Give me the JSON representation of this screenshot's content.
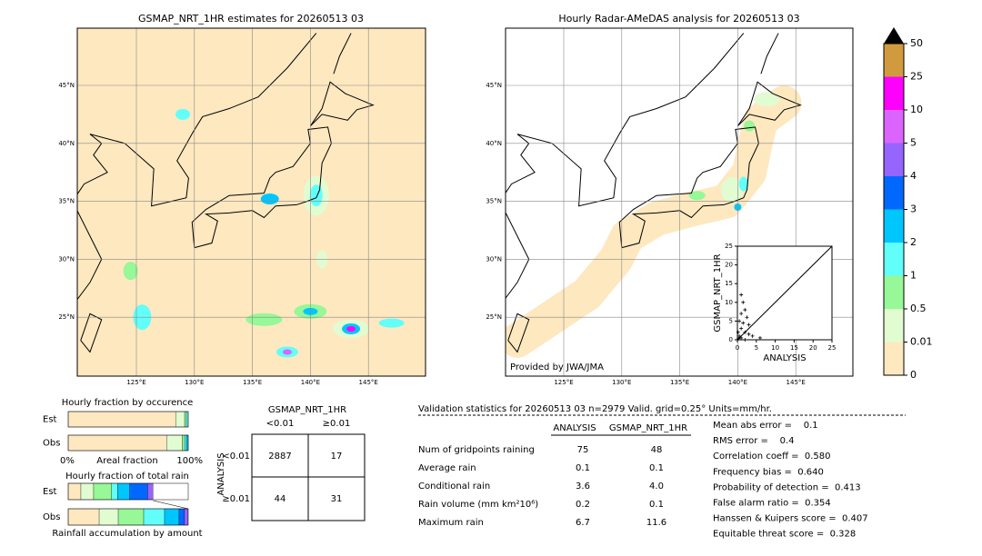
{
  "map_left": {
    "title": "GSMAP_NRT_1HR estimates for 20260513 03",
    "lon_labels": [
      "125°E",
      "130°E",
      "135°E",
      "140°E",
      "145°E"
    ],
    "lat_labels": [
      "45°N",
      "40°N",
      "35°N",
      "30°N",
      "25°N"
    ]
  },
  "map_right": {
    "title": "Hourly Radar-AMeDAS analysis for 20260513 03",
    "lon_labels": [
      "125°E",
      "130°E",
      "135°E",
      "140°E",
      "145°E"
    ],
    "lat_labels": [
      "45°N",
      "40°N",
      "35°N",
      "30°N",
      "25°N"
    ],
    "credit": "Provided by JWA/JMA"
  },
  "colorbar": {
    "ticks": [
      0,
      0.01,
      0.5,
      1,
      2,
      3,
      4,
      5,
      10,
      25,
      50
    ],
    "colors": [
      "#fee8c0",
      "#e2fcd2",
      "#96f896",
      "#62fefa",
      "#00c6fe",
      "#0068fe",
      "#9664fe",
      "#dc64fe",
      "#fe00fe",
      "#d29a3e"
    ],
    "over_color": "#000000"
  },
  "scatter": {
    "type": "scatter",
    "xlabel": "ANALYSIS",
    "ylabel": "GSMAP_NRT_1HR",
    "xlim": [
      0,
      25
    ],
    "ylim": [
      0,
      25
    ],
    "xticks": [
      0,
      5,
      10,
      15,
      20,
      25
    ],
    "yticks": [
      0,
      5,
      10,
      15,
      20,
      25
    ],
    "x": [
      1,
      1.5,
      2,
      1,
      2.5,
      0.5,
      3,
      1,
      2,
      0.5,
      1,
      4,
      6,
      2,
      0.3,
      3,
      1.5,
      0.2
    ],
    "y": [
      12,
      10,
      8,
      7,
      6,
      5,
      4,
      3,
      2,
      1,
      0.5,
      1,
      0.5,
      0,
      0.3,
      1.5,
      4.5,
      2
    ]
  },
  "fraction_occurrence": {
    "title": "Hourly fraction by occurence",
    "rows": [
      "Est",
      "Obs"
    ],
    "axis_labels": [
      "0%",
      "Areal fraction",
      "100%"
    ],
    "segments": [
      [
        89.5,
        7.5,
        1.5,
        1.5
      ],
      [
        82,
        13,
        2,
        1.5,
        1.5
      ]
    ]
  },
  "fraction_rain": {
    "title": "Hourly fraction of total rain",
    "rows": [
      "Est",
      "Obs"
    ],
    "footer": "Rainfall accumulation by amount",
    "segments": [
      [
        10.6,
        10.6,
        15,
        5,
        10,
        15,
        4.5
      ],
      [
        25.8,
        15.9,
        21.2,
        17.4,
        12.1,
        4.5,
        3
      ]
    ]
  },
  "contingency": {
    "title": "GSMAP_NRT_1HR",
    "col_labels": [
      "<0.01",
      "≥0.01"
    ],
    "row_title": "ANALYSIS",
    "row_labels": [
      "<0.01",
      "≥0.01"
    ],
    "cells": [
      [
        "2887",
        "17"
      ],
      [
        "44",
        "31"
      ]
    ]
  },
  "stats": {
    "header": "Validation statistics for 20260513 03  n=2979 Valid. grid=0.25° Units=mm/hr.",
    "columns": [
      "ANALYSIS",
      "GSMAP_NRT_1HR"
    ],
    "rows": [
      {
        "label": "Num of gridpoints raining",
        "values": [
          "75",
          "48"
        ]
      },
      {
        "label": "Average rain",
        "values": [
          "0.1",
          "0.1"
        ]
      },
      {
        "label": "Conditional rain",
        "values": [
          "3.6",
          "4.0"
        ]
      },
      {
        "label": "Rain volume (mm km²10⁶)",
        "values": [
          "0.2",
          "0.1"
        ]
      },
      {
        "label": "Maximum rain",
        "values": [
          "6.7",
          "11.6"
        ]
      }
    ],
    "scores": [
      "Mean abs error =    0.1",
      "RMS error =    0.4",
      "Correlation coeff =  0.580",
      "Frequency bias =  0.640",
      "Probability of detection =  0.413",
      "False alarm ratio =  0.354",
      "Hanssen & Kuipers score =  0.407",
      "Equitable threat score =  0.328"
    ]
  }
}
